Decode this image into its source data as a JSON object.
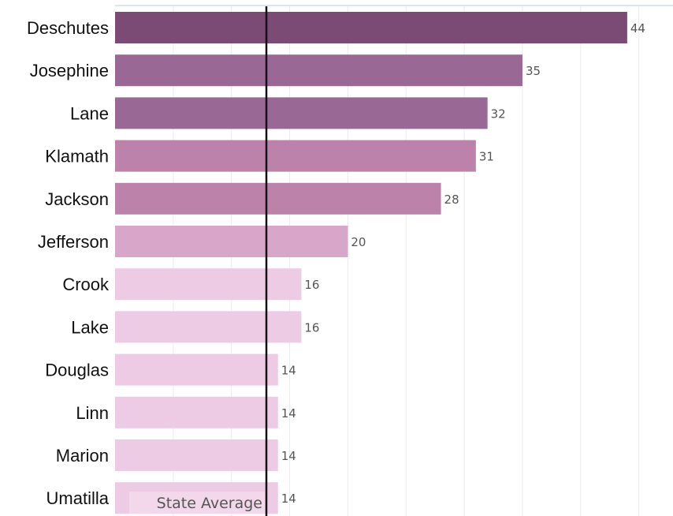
{
  "chart_data": {
    "type": "bar",
    "orientation": "horizontal",
    "categories": [
      "Deschutes",
      "Josephine",
      "Lane",
      "Klamath",
      "Jackson",
      "Jefferson",
      "Crook",
      "Lake",
      "Douglas",
      "Linn",
      "Marion",
      "Umatilla"
    ],
    "values": [
      44,
      35,
      32,
      31,
      28,
      20,
      16,
      16,
      14,
      14,
      14,
      14
    ],
    "bar_colors": [
      "#7b4a75",
      "#9a6895",
      "#9a6895",
      "#bd82aa",
      "#bd82aa",
      "#d8a6c8",
      "#eecbe5",
      "#eecbe5",
      "#eecbe5",
      "#eecbe5",
      "#eecbe5",
      "#eecbe5"
    ],
    "reference_line": {
      "value": 13,
      "label": "State Average",
      "color": "#111111"
    },
    "xlim": [
      0,
      47
    ],
    "grid": true,
    "title": "",
    "xlabel": "",
    "ylabel": ""
  }
}
